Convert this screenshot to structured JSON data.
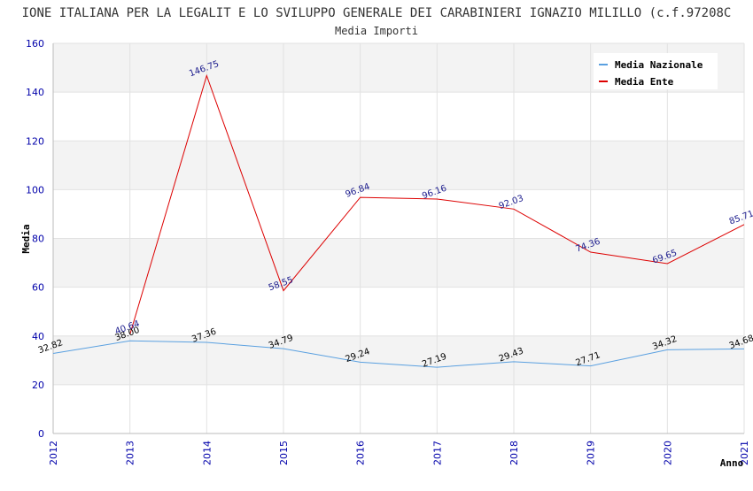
{
  "chart_data": {
    "type": "line",
    "title": "IONE ITALIANA PER LA LEGALIT E LO SVILUPPO GENERALE DEI CARABINIERI IGNAZIO MILILLO (c.f.97208C",
    "subtitle": "Media Importi",
    "xlabel": "Anno",
    "ylabel": "Media",
    "x": [
      "2012",
      "2013",
      "2014",
      "2015",
      "2016",
      "2017",
      "2018",
      "2019",
      "2020",
      "2021"
    ],
    "ylim": [
      0,
      160
    ],
    "yticks": [
      0,
      20,
      40,
      60,
      80,
      100,
      120,
      140,
      160
    ],
    "grid": true,
    "legend_position": "top-right",
    "series": [
      {
        "name": "Media Nazionale",
        "color": "#5aa0e0",
        "values": [
          32.82,
          38.0,
          37.36,
          34.79,
          29.24,
          27.19,
          29.43,
          27.71,
          34.32,
          34.68
        ],
        "labels": [
          "32.82",
          "38.00",
          "37.36",
          "34.79",
          "29.24",
          "27.19",
          "29.43",
          "27.71",
          "34.32",
          "34.68"
        ]
      },
      {
        "name": "Media Ente",
        "color": "#dd0000",
        "values": [
          null,
          40.64,
          146.75,
          58.55,
          96.84,
          96.16,
          92.03,
          74.36,
          69.65,
          85.71
        ],
        "labels": [
          null,
          "40.64",
          "146.75",
          "58.55",
          "96.84",
          "96.16",
          "92.03",
          "74.36",
          "69.65",
          "85.71"
        ]
      }
    ]
  }
}
